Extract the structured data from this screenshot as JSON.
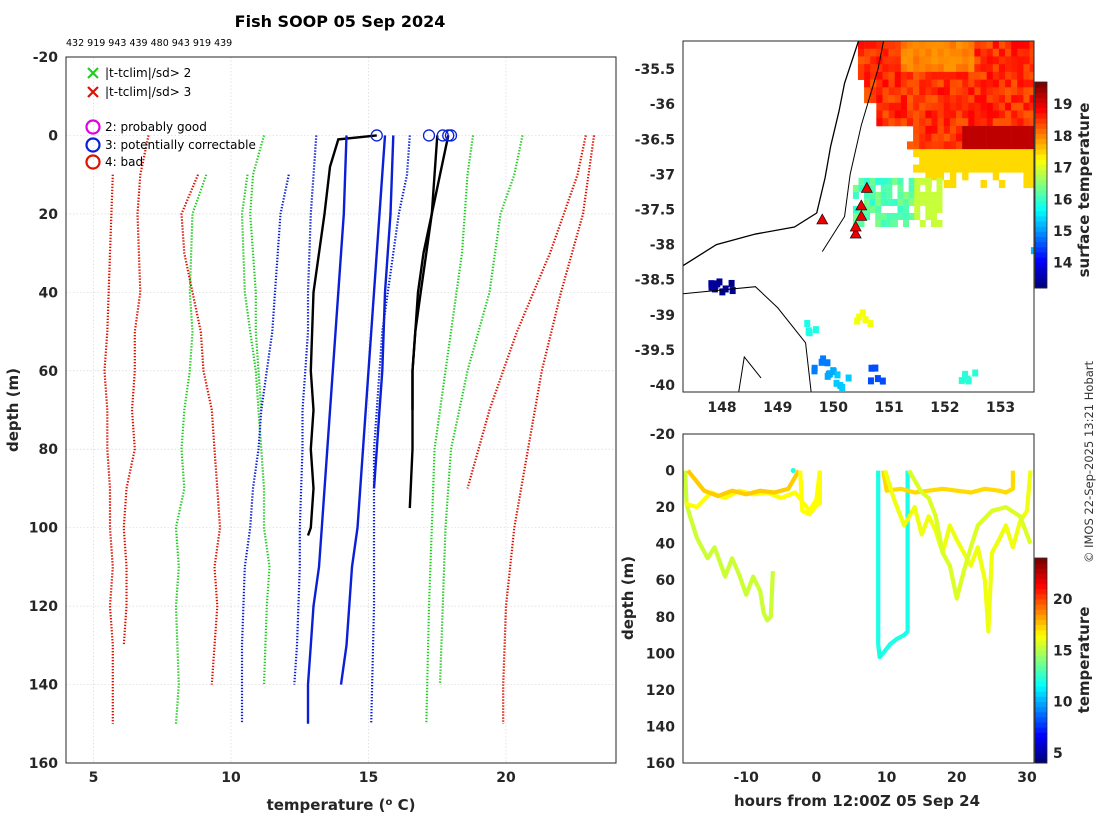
{
  "title": "Fish SOOP 05 Sep 2024",
  "subtitle": "432 919 943 439 480 943 919 439",
  "credit": "© IMOS 22-Sep-2025 13:21 Hobart",
  "colors": {
    "climate2": "#22cc22",
    "climate3": "#dd1100",
    "blue": "#0a1fd6",
    "black": "#000000",
    "magenta": "#e000e0"
  },
  "chart_data": [
    {
      "id": "profiles",
      "type": "line",
      "title": "Fish SOOP 05 Sep 2024",
      "xlabel": "temperature (o C)",
      "ylabel": "depth (m)",
      "xlim": [
        4,
        24
      ],
      "ylim": [
        -20,
        160
      ],
      "y_reversed": true,
      "xticks": [
        5,
        10,
        15,
        20
      ],
      "yticks": [
        -20,
        0,
        20,
        40,
        60,
        80,
        100,
        120,
        140,
        160
      ],
      "legend": {
        "placement": "top-left",
        "items": [
          {
            "marker": "x",
            "color": "#22cc22",
            "label": "|t-tclim|/sd> 2"
          },
          {
            "marker": "x",
            "color": "#dd1100",
            "label": "|t-tclim|/sd> 3"
          },
          {
            "marker": "o",
            "color": "#e000e0",
            "label": "2: probably good"
          },
          {
            "marker": "o",
            "color": "#0a1fd6",
            "label": "3: potentially correctable"
          },
          {
            "marker": "o",
            "color": "#dd1100",
            "label": "4: bad"
          }
        ]
      },
      "series": [
        {
          "name": "clim-3sd-left",
          "style": "dotted",
          "color": "#dd1100",
          "x": [
            5.7,
            5.6,
            5.5,
            5.4,
            5.5,
            5.5,
            5.6,
            5.6,
            5.7,
            5.6,
            5.7,
            5.7,
            5.7
          ],
          "depth": [
            10,
            30,
            50,
            60,
            70,
            80,
            90,
            100,
            110,
            120,
            130,
            140,
            150
          ]
        },
        {
          "name": "clim-3sd-left-2",
          "style": "dotted",
          "color": "#dd1100",
          "x": [
            7.0,
            6.7,
            6.6,
            6.7,
            6.5,
            6.5,
            6.4,
            6.5,
            6.2,
            6.1,
            6.2,
            6.2,
            6.1
          ],
          "depth": [
            0,
            10,
            20,
            40,
            50,
            60,
            70,
            80,
            90,
            100,
            110,
            120,
            130
          ]
        },
        {
          "name": "clim-3sd-mid",
          "style": "dotted",
          "color": "#dd1100",
          "x": [
            8.8,
            8.2,
            8.3,
            8.6,
            8.9,
            9.0,
            9.3,
            9.4,
            9.5,
            9.6,
            9.4,
            9.5,
            9.3
          ],
          "depth": [
            10,
            20,
            30,
            40,
            50,
            60,
            70,
            80,
            90,
            100,
            110,
            120,
            140
          ]
        },
        {
          "name": "clim-2sd-left",
          "style": "dotted",
          "color": "#22cc22",
          "x": [
            9.1,
            8.6,
            8.5,
            8.6,
            8.5,
            8.3,
            8.2,
            8.3,
            8.0,
            8.1,
            8.0,
            8.1,
            8.0
          ],
          "depth": [
            10,
            20,
            40,
            50,
            60,
            70,
            80,
            90,
            100,
            110,
            120,
            140,
            150
          ]
        },
        {
          "name": "clim-2sd-mid",
          "style": "dotted",
          "color": "#22cc22",
          "x": [
            11.2,
            10.8,
            10.7,
            10.9,
            10.9,
            11.0,
            11.1,
            11.1
          ],
          "depth": [
            0,
            10,
            20,
            40,
            50,
            60,
            70,
            70
          ]
        },
        {
          "name": "clim-2sd-mid-2",
          "style": "dotted",
          "color": "#22cc22",
          "x": [
            10.6,
            10.4,
            10.5,
            10.7,
            10.9,
            11.0,
            11.1,
            11.2,
            11.2,
            11.4,
            11.3,
            11.2
          ],
          "depth": [
            10,
            20,
            40,
            50,
            60,
            70,
            80,
            90,
            100,
            110,
            120,
            140
          ]
        },
        {
          "name": "blue-dotted-1",
          "style": "dotted",
          "color": "#0a1fd6",
          "x": [
            12.1,
            11.8,
            11.6,
            11.5,
            11.3,
            11.1,
            11.0,
            10.8,
            10.7,
            10.5,
            10.4,
            10.4
          ],
          "depth": [
            10,
            20,
            40,
            50,
            60,
            70,
            80,
            90,
            100,
            110,
            130,
            150
          ]
        },
        {
          "name": "blue-dotted-2",
          "style": "dotted",
          "color": "#0a1fd6",
          "x": [
            13.1,
            12.9,
            12.8,
            12.8,
            12.7,
            12.6,
            12.6,
            12.5,
            12.5,
            12.4,
            12.3
          ],
          "depth": [
            0,
            20,
            40,
            50,
            60,
            70,
            80,
            100,
            110,
            130,
            140
          ]
        },
        {
          "name": "black-1",
          "style": "solid",
          "color": "#000000",
          "x": [
            15.3,
            13.9,
            13.6,
            13.4,
            13.0,
            12.9,
            13.0,
            12.9,
            13.0,
            12.9,
            12.8
          ],
          "depth": [
            0,
            1,
            8,
            20,
            40,
            60,
            70,
            80,
            90,
            100,
            102
          ]
        },
        {
          "name": "blue-solid-a",
          "style": "solid",
          "color": "#0a1fd6",
          "x": [
            14.2,
            14.1,
            13.9,
            13.7,
            13.5,
            13.3,
            13.2,
            13.0,
            12.9,
            12.8,
            12.8
          ],
          "depth": [
            0,
            20,
            40,
            60,
            80,
            100,
            110,
            120,
            130,
            140,
            150
          ]
        },
        {
          "name": "blue-solid-b",
          "style": "solid",
          "color": "#0a1fd6",
          "x": [
            15.6,
            15.4,
            15.2,
            15.0,
            14.8,
            14.6,
            14.4,
            14.2,
            14.0
          ],
          "depth": [
            0,
            20,
            40,
            60,
            80,
            100,
            110,
            130,
            140
          ]
        },
        {
          "name": "blue-solid-c",
          "style": "solid",
          "color": "#0a1fd6",
          "x": [
            15.9,
            15.8,
            15.6,
            15.5,
            15.4,
            15.3,
            15.2
          ],
          "depth": [
            0,
            20,
            40,
            60,
            70,
            80,
            90
          ]
        },
        {
          "name": "blue-dotted-3",
          "style": "dotted",
          "color": "#0a1fd6",
          "x": [
            16.5,
            16.4,
            16.1,
            15.7,
            15.5,
            15.4,
            15.3,
            15.2,
            15.2,
            15.2,
            15.2,
            15.1
          ],
          "depth": [
            0,
            10,
            20,
            40,
            50,
            60,
            70,
            80,
            90,
            100,
            120,
            150
          ]
        },
        {
          "name": "black-2",
          "style": "solid",
          "color": "#000000",
          "x": [
            17.9,
            17.6,
            17.3,
            17.0,
            16.8,
            16.7,
            16.6,
            16.6,
            16.5
          ],
          "depth": [
            0,
            10,
            20,
            30,
            40,
            50,
            60,
            80,
            95
          ]
        },
        {
          "name": "black-3",
          "style": "solid",
          "color": "#000000",
          "x": [
            17.5,
            17.3,
            17.1,
            16.9,
            16.7,
            16.6,
            16.6
          ],
          "depth": [
            0,
            20,
            30,
            40,
            50,
            60,
            70
          ]
        },
        {
          "name": "clim-2sd-right",
          "style": "dotted",
          "color": "#22cc22",
          "x": [
            18.8,
            18.6,
            18.4,
            18.2,
            18.0,
            17.8,
            17.6,
            17.4,
            17.3,
            17.2,
            17.1
          ],
          "depth": [
            0,
            10,
            30,
            40,
            50,
            60,
            70,
            80,
            100,
            120,
            150
          ]
        },
        {
          "name": "clim-2sd-right-2",
          "style": "dotted",
          "color": "#22cc22",
          "x": [
            20.6,
            20.3,
            19.8,
            19.4,
            19.0,
            18.6,
            18.3,
            18.0,
            17.8,
            17.6
          ],
          "depth": [
            0,
            10,
            20,
            40,
            50,
            60,
            70,
            80,
            100,
            140
          ]
        },
        {
          "name": "clim-3sd-right",
          "style": "dotted",
          "color": "#dd1100",
          "x": [
            22.9,
            22.6,
            22.1,
            21.6,
            21.0,
            20.4,
            19.9,
            19.4,
            19.0,
            18.6
          ],
          "depth": [
            0,
            10,
            20,
            30,
            40,
            50,
            60,
            70,
            80,
            90
          ]
        },
        {
          "name": "clim-3sd-right-2",
          "style": "dotted",
          "color": "#dd1100",
          "x": [
            23.2,
            23.0,
            22.8,
            22.4,
            22.0,
            21.3,
            20.8,
            20.3,
            20.0,
            19.9,
            19.9
          ],
          "depth": [
            0,
            10,
            20,
            30,
            40,
            60,
            80,
            100,
            120,
            140,
            150
          ]
        }
      ],
      "surface_flags": [
        {
          "x": 15.3,
          "depth": 0,
          "color": "#0a1fd6"
        },
        {
          "x": 17.2,
          "depth": 0,
          "color": "#0a1fd6"
        },
        {
          "x": 17.7,
          "depth": 0,
          "color": "#0a1fd6"
        },
        {
          "x": 17.9,
          "depth": 0,
          "color": "#0a1fd6"
        },
        {
          "x": 18.0,
          "depth": 0,
          "color": "#0a1fd6"
        }
      ]
    },
    {
      "id": "map",
      "type": "heatmap",
      "colorbar_label": "surface temperature",
      "xlim": [
        147.3,
        153.6
      ],
      "ylim": [
        -40.1,
        -35.1
      ],
      "xticks": [
        148,
        149,
        150,
        151,
        152,
        153
      ],
      "yticks": [
        -35.5,
        -36,
        -36.5,
        -37,
        -37.5,
        -38,
        -38.5,
        -39,
        -39.5,
        -40
      ],
      "clim": [
        13.2,
        19.7
      ],
      "cticks": [
        14,
        15,
        16,
        17,
        18,
        19
      ],
      "profile_locations": [
        {
          "lon": 149.8,
          "lat": -37.65
        },
        {
          "lon": 150.4,
          "lat": -37.85
        },
        {
          "lon": 150.4,
          "lat": -37.75
        },
        {
          "lon": 150.5,
          "lat": -37.6
        },
        {
          "lon": 150.5,
          "lat": -37.45
        },
        {
          "lon": 150.6,
          "lat": -37.2
        }
      ]
    },
    {
      "id": "track",
      "type": "scatter",
      "xlabel": "hours from 12:00Z 05 Sep 24",
      "ylabel": "depth (m)",
      "xlim": [
        -19,
        31
      ],
      "ylim": [
        -20,
        160
      ],
      "xticks": [
        -10,
        0,
        10,
        20,
        30
      ],
      "yticks": [
        -20,
        0,
        20,
        40,
        60,
        80,
        100,
        120,
        140,
        160
      ],
      "colorbar_label": "temperature",
      "clim": [
        4,
        24
      ],
      "cticks": [
        5,
        10,
        15,
        20
      ]
    }
  ]
}
